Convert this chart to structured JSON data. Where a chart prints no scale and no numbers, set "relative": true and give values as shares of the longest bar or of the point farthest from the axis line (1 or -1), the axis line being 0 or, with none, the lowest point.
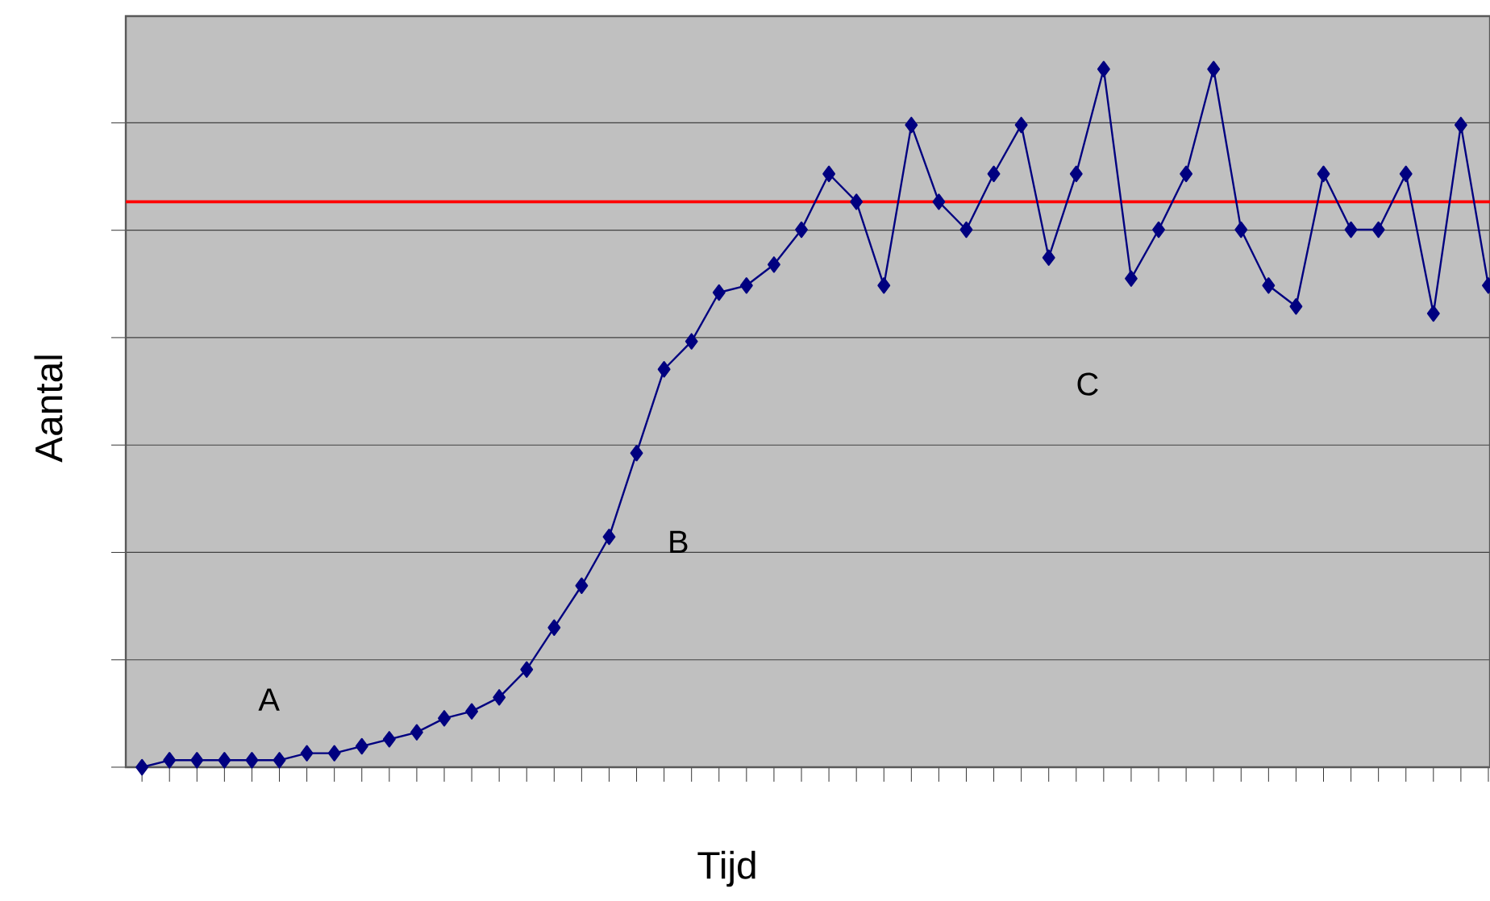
{
  "chart_data": {
    "type": "line",
    "xlabel": "Tijd",
    "ylabel": "Aantal",
    "relative": true,
    "grid": "y",
    "marker": "diamond",
    "line_style": "solid",
    "categories": [
      null,
      null,
      null,
      null,
      null,
      null,
      null,
      null,
      null,
      null,
      null,
      null,
      null,
      null,
      null,
      null,
      null,
      null,
      null,
      null,
      null,
      null,
      null,
      null,
      null,
      null,
      null,
      null,
      null,
      null,
      null,
      null,
      null,
      null,
      null,
      null,
      null,
      null,
      null,
      null,
      null,
      null,
      null,
      null,
      null,
      null,
      null,
      null,
      null,
      null
    ],
    "series": [
      {
        "color": "#000080",
        "values": [
          0,
          0.01,
          0.01,
          0.01,
          0.01,
          0.01,
          0.02,
          0.02,
          0.03,
          0.04,
          0.05,
          0.07,
          0.08,
          0.1,
          0.14,
          0.2,
          0.26,
          0.33,
          0.45,
          0.57,
          0.61,
          0.68,
          0.69,
          0.72,
          0.77,
          0.85,
          0.81,
          0.69,
          0.92,
          0.81,
          0.77,
          0.85,
          0.92,
          0.73,
          0.85,
          1,
          0.7,
          0.77,
          0.85,
          1,
          0.77,
          0.69,
          0.66,
          0.85,
          0.77,
          0.77,
          0.85,
          0.65,
          0.92,
          0.69
        ]
      }
    ],
    "ref_lines": [
      {
        "axis": "y",
        "value": 0.81,
        "color": "#ff0000",
        "line_style": "solid"
      }
    ],
    "annotations": [
      "A",
      "B",
      "C"
    ]
  }
}
